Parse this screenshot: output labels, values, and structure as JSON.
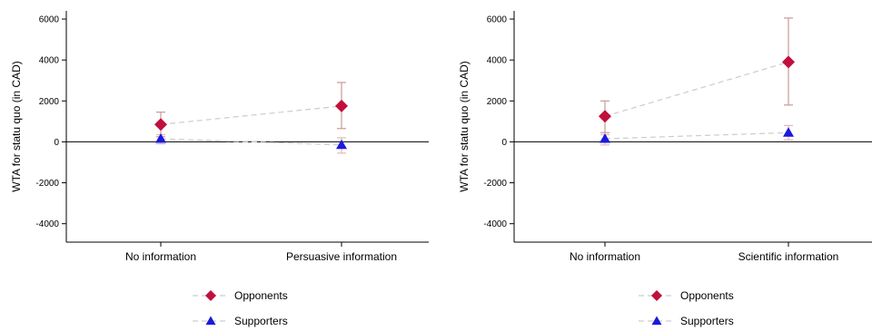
{
  "colors": {
    "opponents": "#c0103c",
    "supporters": "#1a1adc",
    "ci_opponents": "#c89a9a",
    "ci_supporters": "#e3b8b8",
    "connector": "#cccccc",
    "axis": "#000000",
    "zero_line": "#000000"
  },
  "chart_data": [
    {
      "type": "scatter",
      "title": "",
      "xlabel": "",
      "ylabel": "WTA for statu quo (in CAD)",
      "ylim": [
        -4900,
        6400
      ],
      "yticks": [
        6000,
        4000,
        2000,
        0,
        -2000,
        -4000
      ],
      "categories": [
        "No information",
        "Persuasive information"
      ],
      "zero_line": true,
      "grid": false,
      "legend": {
        "placement": "bottom-center"
      },
      "series": [
        {
          "name": "Opponents",
          "marker": "diamond-icon",
          "values": [
            850,
            1750
          ],
          "ci_low": [
            250,
            650
          ],
          "ci_high": [
            1450,
            2900
          ]
        },
        {
          "name": "Supporters",
          "marker": "triangle-icon",
          "values": [
            150,
            -150
          ],
          "ci_low": [
            -100,
            -550
          ],
          "ci_high": [
            350,
            200
          ]
        }
      ]
    },
    {
      "type": "scatter",
      "title": "",
      "xlabel": "",
      "ylabel": "WTA for statu quo (in CAD)",
      "ylim": [
        -4900,
        6400
      ],
      "yticks": [
        6000,
        4000,
        2000,
        0,
        -2000,
        -4000
      ],
      "categories": [
        "No information",
        "Scientific information"
      ],
      "zero_line": true,
      "grid": false,
      "legend": {
        "placement": "bottom-center"
      },
      "series": [
        {
          "name": "Opponents",
          "marker": "diamond-icon",
          "values": [
            1250,
            3900
          ],
          "ci_low": [
            450,
            1800
          ],
          "ci_high": [
            2000,
            6050
          ]
        },
        {
          "name": "Supporters",
          "marker": "triangle-icon",
          "values": [
            150,
            450
          ],
          "ci_low": [
            -150,
            100
          ],
          "ci_high": [
            350,
            800
          ]
        }
      ]
    }
  ]
}
